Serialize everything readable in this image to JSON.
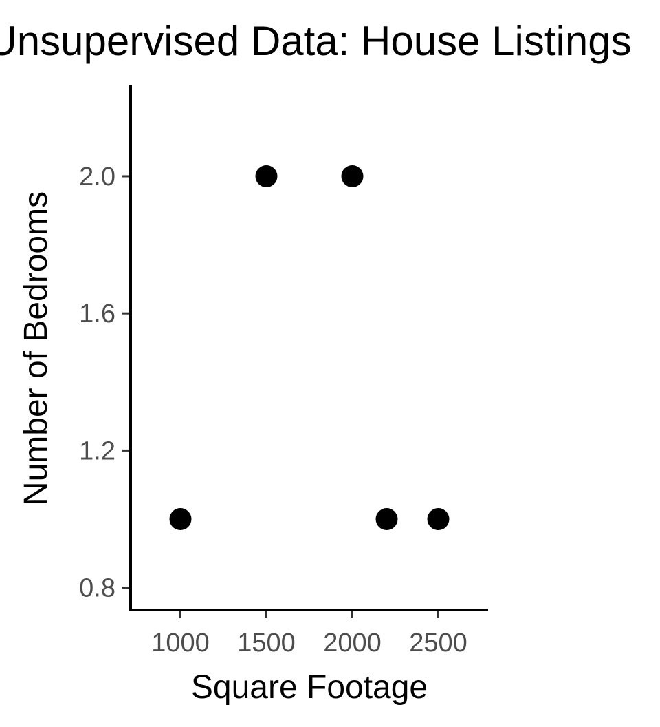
{
  "chart_data": {
    "type": "scatter",
    "title": "Unsupervised Data: House Listings",
    "xlabel": "Square Footage",
    "ylabel": "Number of Bedrooms",
    "x": [
      1000,
      1500,
      2000,
      2200,
      2500
    ],
    "y": [
      1,
      2,
      2,
      1,
      1
    ],
    "xlim": [
      710,
      2790
    ],
    "ylim": [
      0.735,
      2.265
    ],
    "xticks": [
      1000,
      1500,
      2000,
      2500
    ],
    "xtick_labels": [
      "1000",
      "1500",
      "2000",
      "2500"
    ],
    "yticks": [
      0.8,
      1.2,
      1.6,
      2.0
    ],
    "ytick_labels": [
      "0.8",
      "1.2",
      "1.6",
      "2.0"
    ],
    "grid": false,
    "point_color": "#000000"
  }
}
